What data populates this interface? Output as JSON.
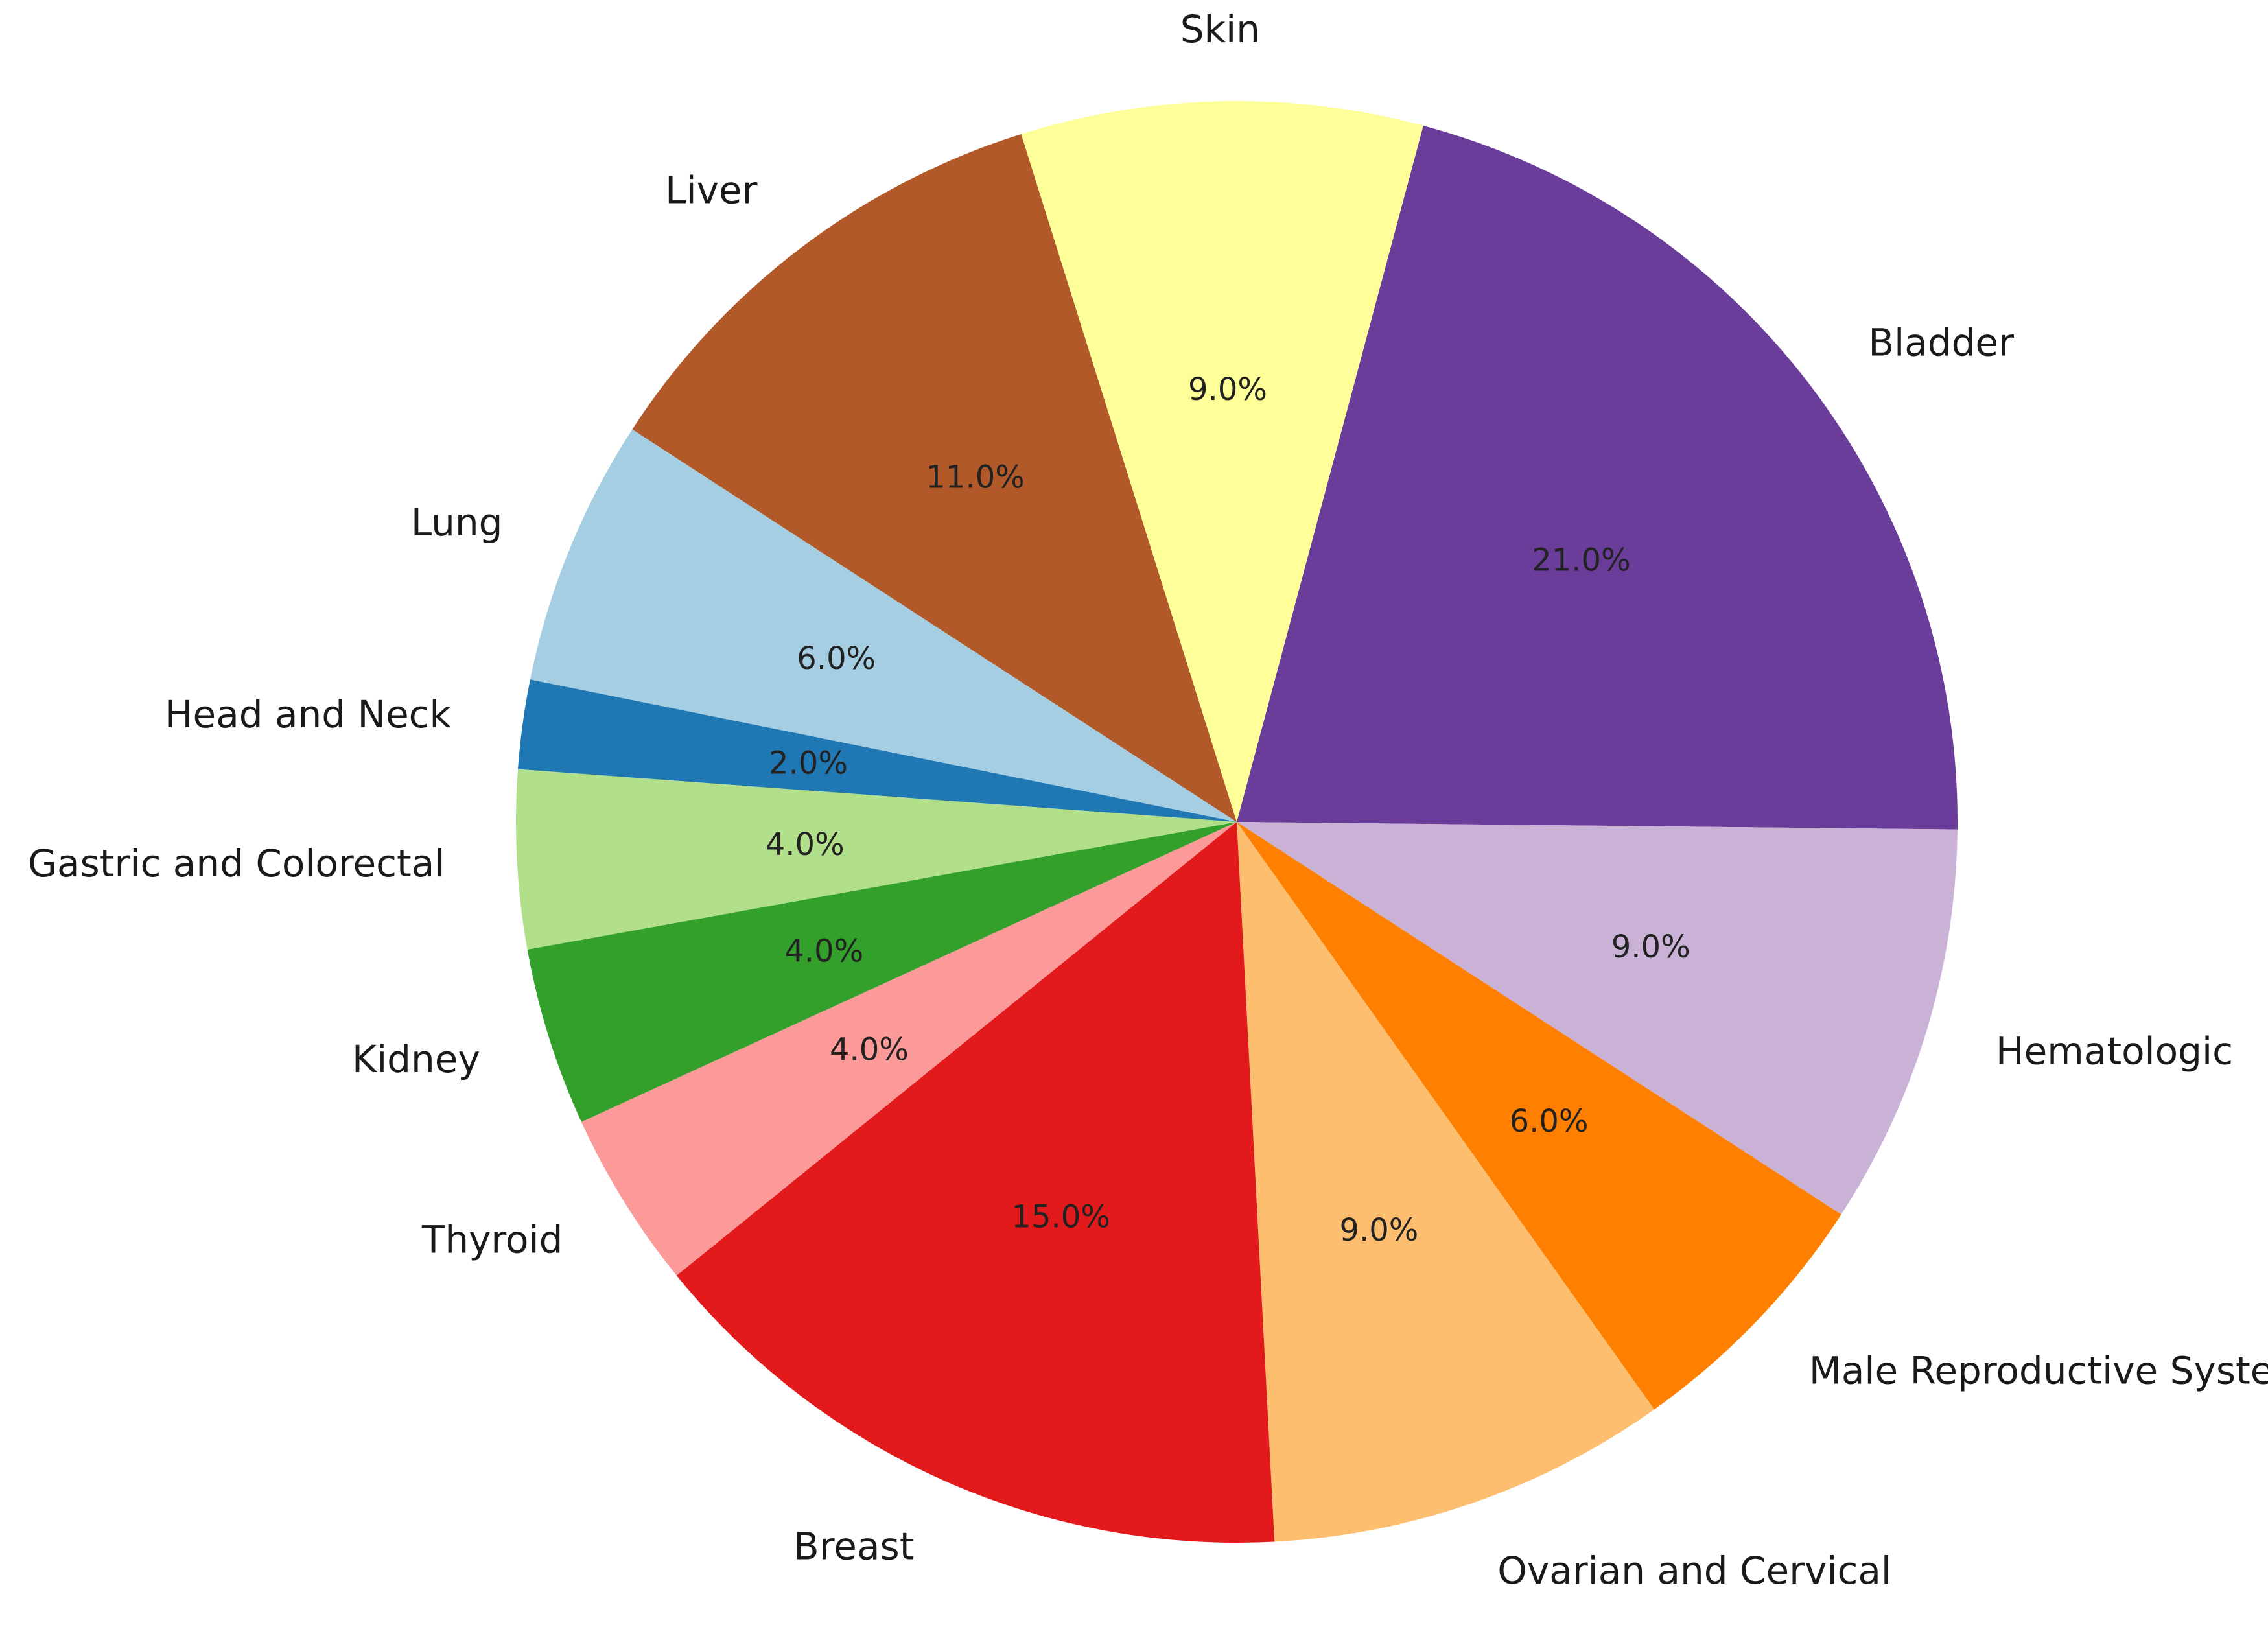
{
  "chart_data": {
    "type": "pie",
    "title": "",
    "slices": [
      {
        "label": "Bladder",
        "value": 21.0,
        "pct_label": "21.0%",
        "color": "#6a3d9a"
      },
      {
        "label": "Hematologic",
        "value": 9.0,
        "pct_label": "9.0%",
        "color": "#cab2d6"
      },
      {
        "label": "Male Reproductive System",
        "value": 6.0,
        "pct_label": "6.0%",
        "color": "#ff7f00"
      },
      {
        "label": "Ovarian and Cervical",
        "value": 9.0,
        "pct_label": "9.0%",
        "color": "#fdbf6f"
      },
      {
        "label": "Breast",
        "value": 15.0,
        "pct_label": "15.0%",
        "color": "#e31a1c"
      },
      {
        "label": "Thyroid",
        "value": 4.0,
        "pct_label": "4.0%",
        "color": "#fb9a99"
      },
      {
        "label": "Kidney",
        "value": 4.0,
        "pct_label": "4.0%",
        "color": "#33a02c"
      },
      {
        "label": "Gastric and Colorectal",
        "value": 4.0,
        "pct_label": "4.0%",
        "color": "#b2df8a"
      },
      {
        "label": "Head and Neck",
        "value": 2.0,
        "pct_label": "2.0%",
        "color": "#1f78b4"
      },
      {
        "label": "Lung",
        "value": 6.0,
        "pct_label": "6.0%",
        "color": "#a6cee3"
      },
      {
        "label": "Liver",
        "value": 11.0,
        "pct_label": "11.0%",
        "color": "#b15928"
      },
      {
        "label": "Skin",
        "value": 9.0,
        "pct_label": "9.0%",
        "color": "#ffff99"
      }
    ]
  }
}
